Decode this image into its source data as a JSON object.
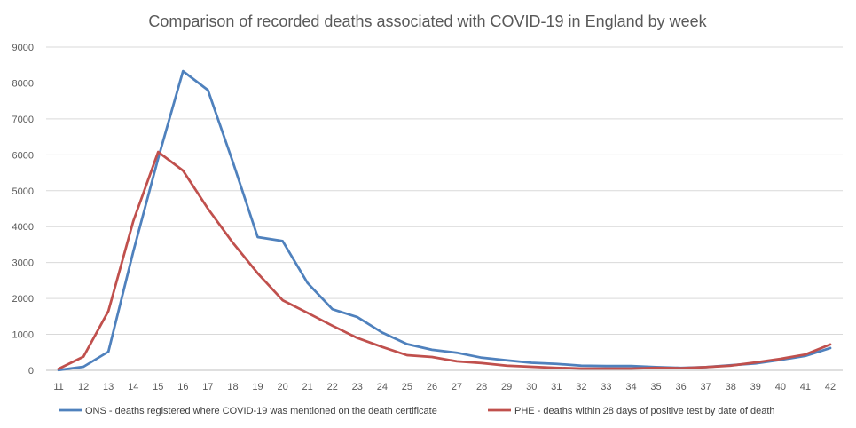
{
  "chart_data": {
    "type": "line",
    "title": "Comparison of recorded deaths associated with COVID-19 in England by week",
    "xlabel": "",
    "ylabel": "",
    "x": [
      11,
      12,
      13,
      14,
      15,
      16,
      17,
      18,
      19,
      20,
      21,
      22,
      23,
      24,
      25,
      26,
      27,
      28,
      29,
      30,
      31,
      32,
      33,
      34,
      35,
      36,
      37,
      38,
      39,
      40,
      41,
      42
    ],
    "ylim": [
      0,
      9000
    ],
    "yticks": [
      0,
      1000,
      2000,
      3000,
      4000,
      5000,
      6000,
      7000,
      8000,
      9000
    ],
    "grid": true,
    "legend_position": "bottom",
    "series": [
      {
        "name": "ONS - deaths registered where COVID-19 was mentioned on the death certificate",
        "color": "#4f81bd",
        "values": [
          5,
          100,
          520,
          3300,
          5900,
          8330,
          7800,
          5800,
          3710,
          3600,
          2430,
          1700,
          1480,
          1050,
          730,
          570,
          490,
          350,
          280,
          210,
          180,
          130,
          120,
          120,
          90,
          70,
          90,
          140,
          190,
          290,
          400,
          620
        ]
      },
      {
        "name": "PHE - deaths within 28 days of positive test by date of death",
        "color": "#c0504d",
        "values": [
          40,
          380,
          1650,
          4150,
          6080,
          5560,
          4500,
          3550,
          2700,
          1950,
          1600,
          1240,
          900,
          650,
          420,
          370,
          250,
          200,
          130,
          100,
          70,
          50,
          50,
          50,
          70,
          60,
          90,
          130,
          220,
          320,
          440,
          720
        ]
      }
    ]
  }
}
